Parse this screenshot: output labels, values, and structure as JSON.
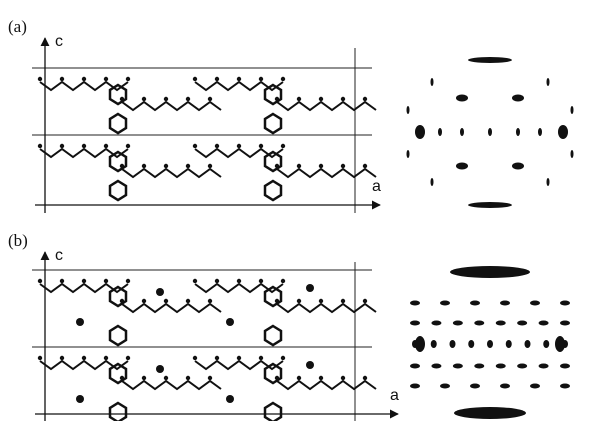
{
  "panels": [
    {
      "label": "(a)",
      "axis_c": "c",
      "axis_a": "a"
    },
    {
      "label": "(b)",
      "axis_c": "c",
      "axis_a": "a"
    }
  ]
}
